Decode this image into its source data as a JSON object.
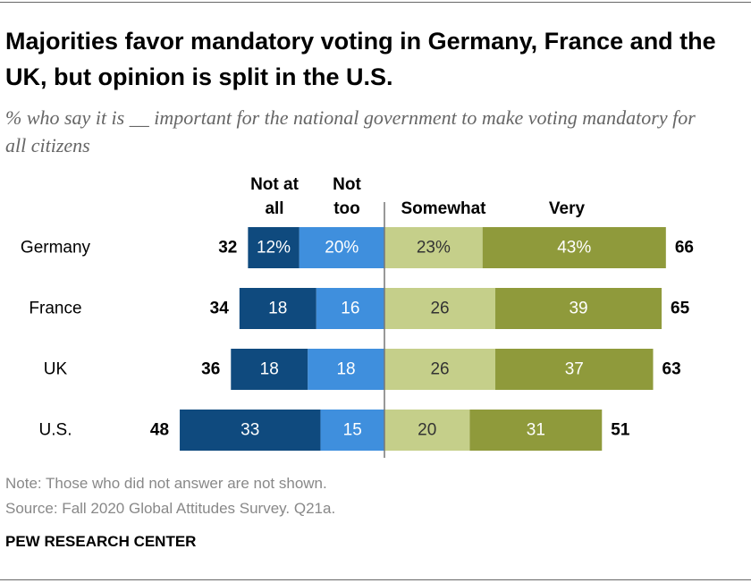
{
  "chart_data": {
    "type": "diverging_bar",
    "title": "Majorities favor mandatory voting in Germany, France and the UK, but opinion is split in the U.S.",
    "subtitle": "% who say it is __ important for the national government to make voting mandatory for all citizens",
    "categories": [
      "Germany",
      "France",
      "UK",
      "U.S."
    ],
    "series": [
      {
        "name": "Not at all",
        "color": "#0f4a7e",
        "side": "left",
        "values": [
          12,
          18,
          18,
          33
        ],
        "value_labels": [
          "12%",
          "18",
          "18",
          "33"
        ]
      },
      {
        "name": "Not too",
        "color": "#3f8fdd",
        "side": "left",
        "values": [
          20,
          16,
          18,
          15
        ],
        "value_labels": [
          "20%",
          "16",
          "18",
          "15"
        ]
      },
      {
        "name": "Somewhat",
        "color": "#c5cf8a",
        "side": "right",
        "values": [
          23,
          26,
          26,
          20
        ],
        "value_labels": [
          "23%",
          "26",
          "26",
          "20"
        ]
      },
      {
        "name": "Very",
        "color": "#8f9a3b",
        "side": "right",
        "values": [
          43,
          39,
          37,
          31
        ],
        "value_labels": [
          "43%",
          "39",
          "37",
          "31"
        ]
      }
    ],
    "totals_left": [
      32,
      34,
      36,
      48
    ],
    "totals_right": [
      66,
      65,
      63,
      51
    ],
    "note": "Note: Those who did not answer are not shown.",
    "source": "Source: Fall 2020 Global Attitudes Survey. Q21a.",
    "credit": "PEW RESEARCH CENTER"
  }
}
